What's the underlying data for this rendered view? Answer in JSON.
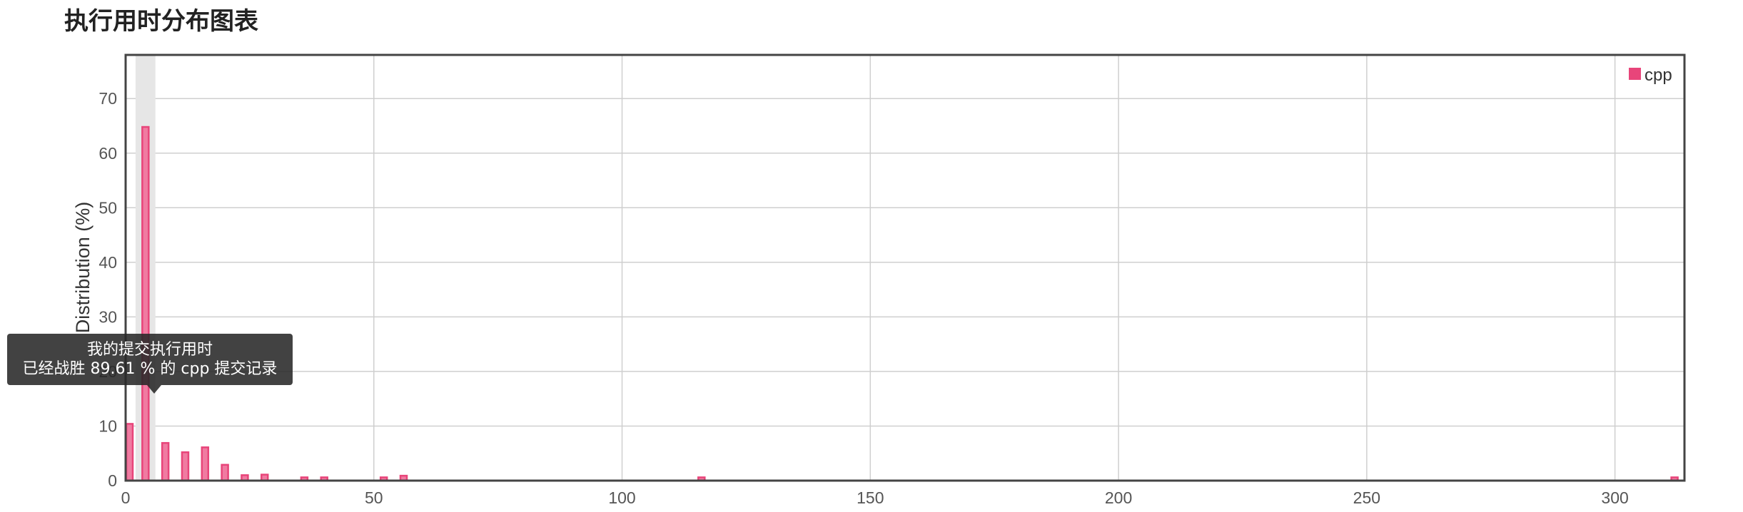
{
  "page_title": "执行用时分布图表",
  "chart_data": {
    "type": "bar",
    "ylabel": "Distribution (%)",
    "xlabel": "",
    "xlim": [
      0,
      314
    ],
    "ylim": [
      0,
      78
    ],
    "x_ticks": [
      0,
      50,
      100,
      150,
      200,
      250,
      300
    ],
    "y_ticks": [
      0,
      10,
      20,
      30,
      40,
      50,
      60,
      70
    ],
    "grid": true,
    "legend_position": "top-right",
    "highlight_x": 4,
    "series": [
      {
        "name": "cpp",
        "color": "#e8457a",
        "x": [
          0,
          4,
          8,
          12,
          16,
          20,
          24,
          28,
          36,
          40,
          52,
          56,
          116,
          312
        ],
        "values": [
          10.4,
          64.8,
          6.9,
          5.2,
          6.1,
          2.9,
          1.0,
          1.1,
          0.6,
          0.6,
          0.6,
          0.9,
          0.6,
          0.6
        ]
      }
    ]
  },
  "tooltip": {
    "line1": "我的提交执行用时",
    "line2": "已经战胜 89.61 % 的 cpp 提交记录"
  }
}
